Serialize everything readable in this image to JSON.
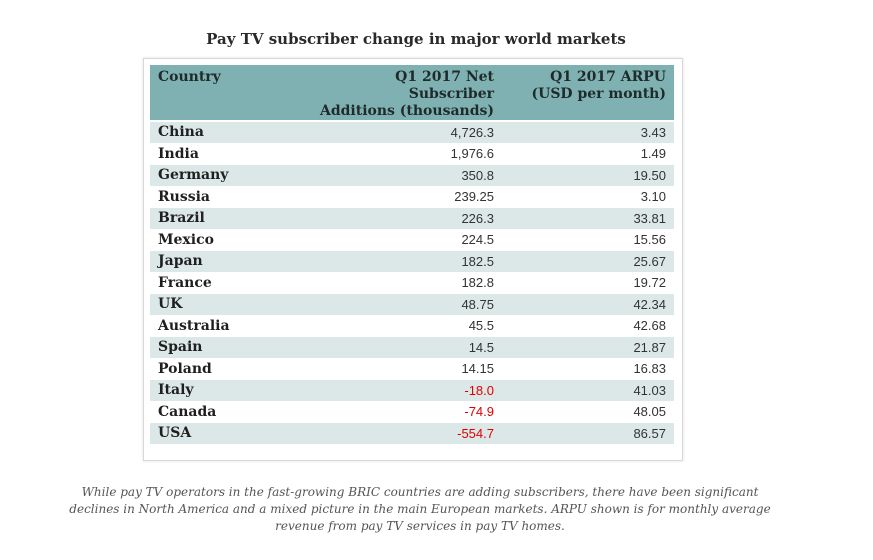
{
  "title": "Pay TV subscriber change in major world markets",
  "table": {
    "headers": {
      "country": "Country",
      "subs_line1": "Q1 2017 Net Subscriber",
      "subs_line2": "Additions (thousands)",
      "arpu_line1": "Q1 2017 ARPU",
      "arpu_line2": "(USD per month)"
    },
    "rows": [
      {
        "country": "China",
        "subs": "4,726.3",
        "arpu": "3.43"
      },
      {
        "country": "India",
        "subs": "1,976.6",
        "arpu": "1.49"
      },
      {
        "country": "Germany",
        "subs": "350.8",
        "arpu": "19.50"
      },
      {
        "country": "Russia",
        "subs": "239.25",
        "arpu": "3.10"
      },
      {
        "country": "Brazil",
        "subs": "226.3",
        "arpu": "33.81"
      },
      {
        "country": "Mexico",
        "subs": "224.5",
        "arpu": "15.56"
      },
      {
        "country": "Japan",
        "subs": "182.5",
        "arpu": "25.67"
      },
      {
        "country": "France",
        "subs": "182.8",
        "arpu": "19.72"
      },
      {
        "country": "UK",
        "subs": "48.75",
        "arpu": "42.34"
      },
      {
        "country": "Australia",
        "subs": "45.5",
        "arpu": "42.68"
      },
      {
        "country": "Spain",
        "subs": "14.5",
        "arpu": "21.87"
      },
      {
        "country": "Poland",
        "subs": "14.15",
        "arpu": "16.83"
      },
      {
        "country": "Italy",
        "subs": "-18.0",
        "arpu": "41.03"
      },
      {
        "country": "Canada",
        "subs": "-74.9",
        "arpu": "48.05"
      },
      {
        "country": "USA",
        "subs": "-554.7",
        "arpu": "86.57"
      }
    ],
    "negative_color": "#e00000",
    "header_color": "#7fb1b2",
    "stripe_color": "#dce8e8"
  },
  "caption": {
    "line1": "While pay TV operators in the fast-growing BRIC countries are adding subscribers, there have been significant",
    "line2": "declines in North America and a mixed picture in the main European markets. ARPU shown is for monthly average",
    "line3": "revenue from pay TV services in pay TV homes."
  }
}
